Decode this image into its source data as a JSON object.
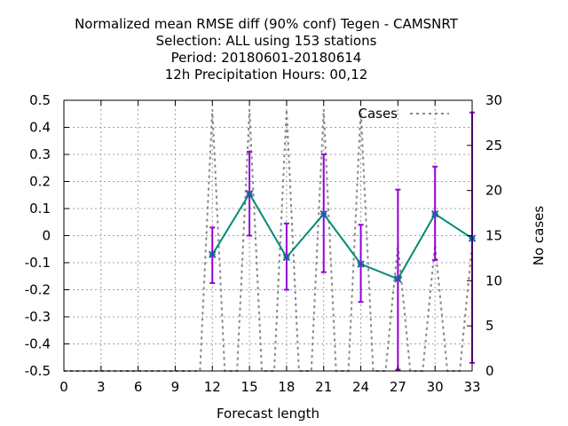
{
  "chart_data": {
    "type": "line",
    "title_lines": [
      "Normalized mean RMSE diff (90% conf) Tegen - CAMSNRT",
      "Selection: ALL using   153 stations",
      "Period: 20180601-20180614",
      "12h Precipitation   Hours:  00,12"
    ],
    "xlabel": "Forecast length",
    "ylabel": "",
    "y2label": "No cases",
    "xlim": [
      0,
      33
    ],
    "ylim": [
      -0.5,
      0.5
    ],
    "y2lim": [
      0,
      30
    ],
    "xticks": [
      0,
      3,
      6,
      9,
      12,
      15,
      18,
      21,
      24,
      27,
      30,
      33
    ],
    "yticks": [
      "0.5",
      "0.4",
      "0.3",
      "0.2",
      "0.1",
      "0",
      "-0.1",
      "-0.2",
      "-0.3",
      "-0.4",
      "-0.5"
    ],
    "yticks_values": [
      0.5,
      0.4,
      0.3,
      0.2,
      0.1,
      0,
      -0.1,
      -0.2,
      -0.3,
      -0.4,
      -0.5
    ],
    "y2ticks": [
      30,
      25,
      20,
      15,
      10,
      5,
      0
    ],
    "grid": true,
    "legend_position": "top-right",
    "series": [
      {
        "kind": "errorline",
        "color": "#008b73",
        "errcolor": "#9400d3",
        "x": [
          12,
          15,
          18,
          21,
          24,
          27,
          30,
          33
        ],
        "y": [
          -0.07,
          0.155,
          -0.08,
          0.08,
          -0.105,
          -0.16,
          0.08,
          -0.01
        ],
        "ylow": [
          -0.175,
          0.0,
          -0.2,
          -0.135,
          -0.245,
          -0.495,
          -0.09,
          -0.47
        ],
        "yhigh": [
          0.03,
          0.31,
          0.045,
          0.3,
          0.04,
          0.17,
          0.255,
          0.455
        ]
      },
      {
        "name": "Cases",
        "kind": "cases",
        "axis": "y2",
        "color": "#888888",
        "x": [
          0,
          1,
          2,
          3,
          4,
          5,
          6,
          7,
          8,
          9,
          10,
          11,
          12,
          13,
          14,
          15,
          16,
          17,
          18,
          19,
          20,
          21,
          22,
          23,
          24,
          25,
          26,
          27,
          28,
          29,
          30,
          31,
          32,
          33
        ],
        "y": [
          0,
          0,
          0,
          0,
          0,
          0,
          0,
          0,
          0,
          0,
          0,
          0,
          29,
          0,
          0,
          29,
          0,
          0,
          29,
          0,
          0,
          29,
          0,
          0,
          29,
          0,
          0,
          14,
          0,
          0,
          14,
          0,
          0,
          14
        ]
      }
    ]
  }
}
